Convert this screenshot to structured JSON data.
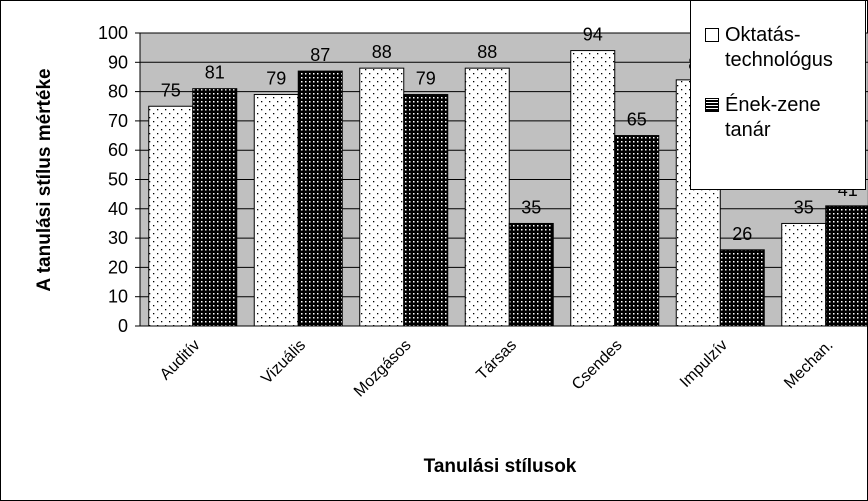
{
  "chart_data": {
    "type": "bar",
    "x_label": "Tanulási stílusok",
    "y_label": "A tanulási stílus mértéke",
    "categories": [
      "Auditív",
      "Vizuális",
      "Mozgásos",
      "Társas",
      "Csendes",
      "Impulzív",
      "Mechan."
    ],
    "series": [
      {
        "name": "Oktatás-technológus",
        "color": "#ffffff",
        "values": [
          75,
          79,
          88,
          88,
          94,
          84,
          35
        ]
      },
      {
        "name": "Ének-zene tanár",
        "color": "#000000",
        "values": [
          81,
          87,
          79,
          35,
          65,
          26,
          41
        ]
      }
    ],
    "ylim": [
      0,
      100
    ],
    "yticks": [
      0,
      10,
      20,
      30,
      40,
      50,
      60,
      70,
      80,
      90,
      100
    ],
    "grid": true,
    "legend": "top-right"
  }
}
